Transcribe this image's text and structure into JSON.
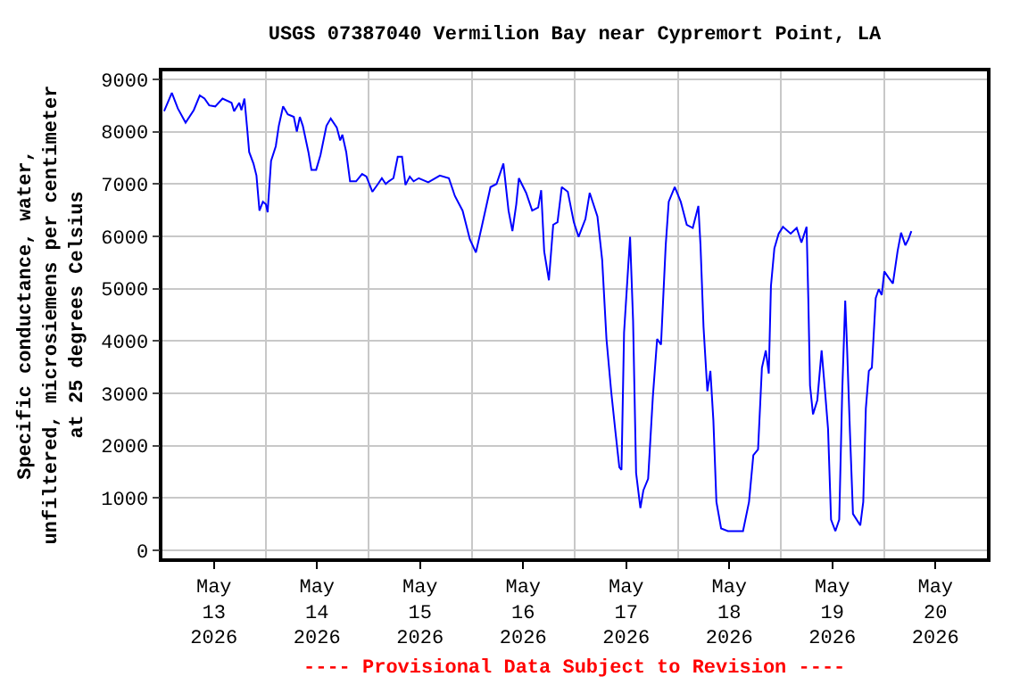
{
  "chart_data": {
    "type": "line",
    "title": "USGS 07387040 Vermilion Bay near Cypremort Point, LA",
    "ylabel": "Specific conductance, water,\nunfiltered, microsiemens per centimeter\nat 25 degrees Celsius",
    "annotations": [
      "---- Provisional Data Subject to Revision ----"
    ],
    "xlim": [
      "2026-05-13",
      "2026-05-21"
    ],
    "xticks": [
      {
        "value": "2026-05-13T12:00",
        "label": "May\n13\n2026"
      },
      {
        "value": "2026-05-14T12:00",
        "label": "May\n14\n2026"
      },
      {
        "value": "2026-05-15T12:00",
        "label": "May\n15\n2026"
      },
      {
        "value": "2026-05-16T12:00",
        "label": "May\n16\n2026"
      },
      {
        "value": "2026-05-17T12:00",
        "label": "May\n17\n2026"
      },
      {
        "value": "2026-05-18T12:00",
        "label": "May\n18\n2026"
      },
      {
        "value": "2026-05-19T12:00",
        "label": "May\n19\n2026"
      },
      {
        "value": "2026-05-20T12:00",
        "label": "May\n20\n2026"
      },
      {
        "value": "2026-05-14",
        "label": null
      },
      {
        "value": "2026-05-15",
        "label": null
      },
      {
        "value": "2026-05-16",
        "label": null
      },
      {
        "value": "2026-05-17",
        "label": null
      },
      {
        "value": "2026-05-18",
        "label": null
      },
      {
        "value": "2026-05-19",
        "label": null
      },
      {
        "value": "2026-05-20",
        "label": null
      }
    ],
    "ylim": [
      -150,
      9150
    ],
    "yticks": [
      0,
      1000,
      2000,
      3000,
      4000,
      5000,
      6000,
      7000,
      8000,
      9000
    ],
    "grid": true,
    "marker": "none",
    "line_style": "solid",
    "series": [
      {
        "color": "#0000ff",
        "x": [
          "2026-05-13T00:24",
          "2026-05-13T02:12",
          "2026-05-13T03:36",
          "2026-05-13T05:24",
          "2026-05-13T07:18",
          "2026-05-13T08:42",
          "2026-05-13T09:48",
          "2026-05-13T10:54",
          "2026-05-13T12:18",
          "2026-05-13T14:00",
          "2026-05-13T16:06",
          "2026-05-13T16:42",
          "2026-05-13T17:54",
          "2026-05-13T18:24",
          "2026-05-13T19:06",
          "2026-05-13T19:48",
          "2026-05-13T20:12",
          "2026-05-13T21:12",
          "2026-05-13T21:54",
          "2026-05-13T22:36",
          "2026-05-13T23:24",
          "2026-05-14T00:06",
          "2026-05-14T00:30",
          "2026-05-14T01:18",
          "2026-05-14T02:24",
          "2026-05-14T03:06",
          "2026-05-14T04:06",
          "2026-05-14T05:12",
          "2026-05-14T06:36",
          "2026-05-14T07:18",
          "2026-05-14T08:00",
          "2026-05-14T08:42",
          "2026-05-14T10:00",
          "2026-05-14T10:42",
          "2026-05-14T11:48",
          "2026-05-14T12:48",
          "2026-05-14T14:12",
          "2026-05-14T15:12",
          "2026-05-14T16:36",
          "2026-05-14T17:24",
          "2026-05-14T17:54",
          "2026-05-14T18:48",
          "2026-05-14T19:42",
          "2026-05-14T21:06",
          "2026-05-14T22:30",
          "2026-05-14T23:30",
          "2026-05-15T00:54",
          "2026-05-15T02:12",
          "2026-05-15T03:06",
          "2026-05-15T04:00",
          "2026-05-15T04:42",
          "2026-05-15T05:48",
          "2026-05-15T06:48",
          "2026-05-15T07:48",
          "2026-05-15T08:36",
          "2026-05-15T09:36",
          "2026-05-15T10:30",
          "2026-05-15T11:42",
          "2026-05-15T13:54",
          "2026-05-15T16:36",
          "2026-05-15T18:42",
          "2026-05-15T20:06",
          "2026-05-15T21:54",
          "2026-05-15T23:36",
          "2026-05-16T01:00",
          "2026-05-16T02:18",
          "2026-05-16T04:24",
          "2026-05-16T05:48",
          "2026-05-16T07:24",
          "2026-05-16T08:36",
          "2026-05-16T09:30",
          "2026-05-16T10:24",
          "2026-05-16T11:00",
          "2026-05-16T12:42",
          "2026-05-16T14:06",
          "2026-05-16T15:30",
          "2026-05-16T16:12",
          "2026-05-16T16:54",
          "2026-05-16T18:00",
          "2026-05-16T19:00",
          "2026-05-16T20:00",
          "2026-05-16T21:00",
          "2026-05-16T22:24",
          "2026-05-16T23:48",
          "2026-05-17T00:54",
          "2026-05-17T02:30",
          "2026-05-17T03:30",
          "2026-05-17T05:18",
          "2026-05-17T06:24",
          "2026-05-17T07:24",
          "2026-05-17T08:30",
          "2026-05-17T09:30",
          "2026-05-17T10:24",
          "2026-05-17T10:54",
          "2026-05-17T11:30",
          "2026-05-17T12:54",
          "2026-05-17T13:36",
          "2026-05-17T14:18",
          "2026-05-17T15:18",
          "2026-05-17T16:00",
          "2026-05-17T17:06",
          "2026-05-17T18:12",
          "2026-05-17T19:12",
          "2026-05-17T20:06",
          "2026-05-17T21:12",
          "2026-05-17T21:54",
          "2026-05-17T23:18",
          "2026-05-18T00:42",
          "2026-05-18T02:06",
          "2026-05-18T03:30",
          "2026-05-18T04:48",
          "2026-05-18T05:18",
          "2026-05-18T06:00",
          "2026-05-18T06:54",
          "2026-05-18T07:36",
          "2026-05-18T08:18",
          "2026-05-18T09:00",
          "2026-05-18T10:06",
          "2026-05-18T11:42",
          "2026-05-18T15:12",
          "2026-05-18T16:36",
          "2026-05-18T17:36",
          "2026-05-18T18:42",
          "2026-05-18T19:36",
          "2026-05-18T20:30",
          "2026-05-18T21:12",
          "2026-05-18T21:42",
          "2026-05-18T22:30",
          "2026-05-18T23:30",
          "2026-05-19T00:30",
          "2026-05-19T02:18",
          "2026-05-19T03:42",
          "2026-05-19T04:48",
          "2026-05-19T06:00",
          "2026-05-19T06:24",
          "2026-05-19T06:48",
          "2026-05-19T07:30",
          "2026-05-19T08:30",
          "2026-05-19T09:30",
          "2026-05-19T10:18",
          "2026-05-19T11:00",
          "2026-05-19T11:42",
          "2026-05-19T12:42",
          "2026-05-19T13:36",
          "2026-05-19T14:18",
          "2026-05-19T15:00",
          "2026-05-19T15:24",
          "2026-05-19T16:06",
          "2026-05-19T16:48",
          "2026-05-19T18:30",
          "2026-05-19T19:12",
          "2026-05-19T19:48",
          "2026-05-19T20:30",
          "2026-05-19T21:12",
          "2026-05-19T22:06",
          "2026-05-19T22:48",
          "2026-05-19T23:30",
          "2026-05-20T00:06",
          "2026-05-20T01:06",
          "2026-05-20T02:06",
          "2026-05-20T03:12",
          "2026-05-20T04:00",
          "2026-05-20T05:00",
          "2026-05-20T05:42",
          "2026-05-20T06:24"
        ],
        "values": [
          8390,
          8740,
          8440,
          8170,
          8410,
          8690,
          8630,
          8500,
          8480,
          8630,
          8550,
          8390,
          8550,
          8410,
          8630,
          8000,
          7610,
          7390,
          7160,
          6490,
          6660,
          6610,
          6460,
          7440,
          7720,
          8110,
          8480,
          8330,
          8280,
          8000,
          8280,
          8110,
          7610,
          7270,
          7270,
          7550,
          8110,
          8250,
          8080,
          7830,
          7940,
          7610,
          7050,
          7050,
          7190,
          7140,
          6850,
          7000,
          7110,
          7000,
          7050,
          7110,
          7520,
          7520,
          6980,
          7140,
          7050,
          7110,
          7030,
          7160,
          7110,
          6770,
          6490,
          5940,
          5690,
          6160,
          6940,
          7000,
          7390,
          6490,
          6100,
          6610,
          7110,
          6830,
          6490,
          6550,
          6880,
          5710,
          5160,
          6220,
          6270,
          6940,
          6850,
          6270,
          5990,
          6330,
          6830,
          6380,
          5550,
          4040,
          3040,
          2260,
          1590,
          1540,
          4160,
          5990,
          4380,
          1480,
          810,
          1150,
          1370,
          2930,
          4040,
          3930,
          5830,
          6660,
          6940,
          6660,
          6220,
          6160,
          6580,
          5830,
          4270,
          3040,
          3430,
          2480,
          930,
          420,
          370,
          370,
          930,
          1820,
          1930,
          3490,
          3820,
          3380,
          5050,
          5770,
          6050,
          6180,
          6050,
          6160,
          5880,
          6180,
          4820,
          3150,
          2600,
          2870,
          3820,
          3040,
          2320,
          590,
          370,
          590,
          3040,
          4770,
          3930,
          2260,
          700,
          480,
          930,
          2710,
          3430,
          3490,
          4820,
          4990,
          4880,
          5330,
          5210,
          5100,
          5720,
          6070,
          5830,
          5940,
          6100
        ]
      }
    ]
  }
}
